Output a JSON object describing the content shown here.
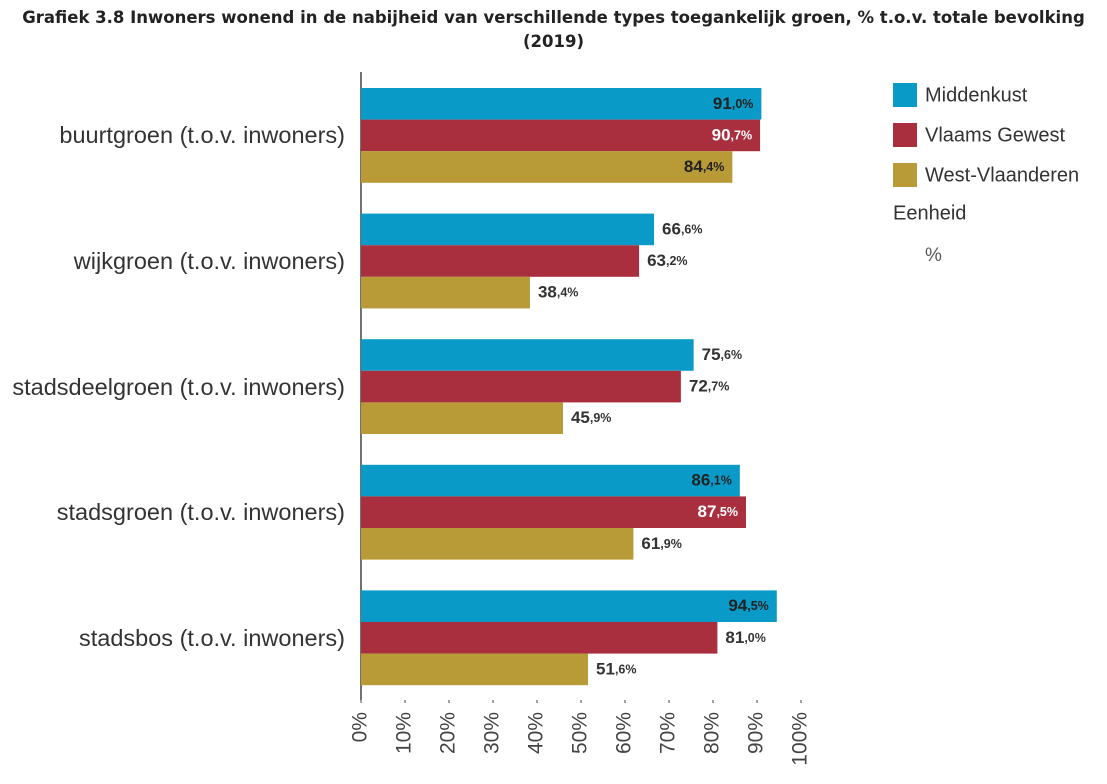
{
  "chart_data": {
    "type": "barh",
    "title": "Grafiek 3.8 Inwoners wonend in de nabijheid van verschillende types toegankelijk groen, % t.o.v. totale bevolking (2019)",
    "categories": [
      "buurtgroen (t.o.v. inwoners)",
      "wijkgroen (t.o.v. inwoners)",
      "stadsdeelgroen (t.o.v. inwoners)",
      "stadsgroen (t.o.v. inwoners)",
      "stadsbos (t.o.v. inwoners)"
    ],
    "series": [
      {
        "name": "Middenkust",
        "color": "#0a9ac8",
        "values": [
          91.0,
          66.6,
          75.6,
          86.1,
          94.5
        ],
        "value_labels": [
          "91,0%",
          "66,6%",
          "75,6%",
          "86,1%",
          "94,5%"
        ]
      },
      {
        "name": "Vlaams Gewest",
        "color": "#a92f3f",
        "values": [
          90.7,
          63.2,
          72.7,
          87.5,
          81.0
        ],
        "value_labels": [
          "90,7%",
          "63,2%",
          "72,7%",
          "87,5%",
          "81,0%"
        ]
      },
      {
        "name": "West-Vlaanderen",
        "color": "#b89a36",
        "values": [
          84.4,
          38.4,
          45.9,
          61.9,
          51.6
        ],
        "value_labels": [
          "84,4%",
          "38,4%",
          "45,9%",
          "61,9%",
          "51,6%"
        ]
      }
    ],
    "xlim": [
      0,
      100
    ],
    "xticks": [
      {
        "value": 0,
        "label": "0%"
      },
      {
        "value": 10,
        "label": "10%"
      },
      {
        "value": 20,
        "label": "20%"
      },
      {
        "value": 30,
        "label": "30%"
      },
      {
        "value": 40,
        "label": "40%"
      },
      {
        "value": 50,
        "label": "50%"
      },
      {
        "value": 60,
        "label": "60%"
      },
      {
        "value": 70,
        "label": "70%"
      },
      {
        "value": 80,
        "label": "80%"
      },
      {
        "value": 90,
        "label": "90%"
      },
      {
        "value": 100,
        "label": "100%"
      }
    ],
    "grid": false,
    "legend_position": "right",
    "unit_label": "Eenheid",
    "unit": "%"
  }
}
